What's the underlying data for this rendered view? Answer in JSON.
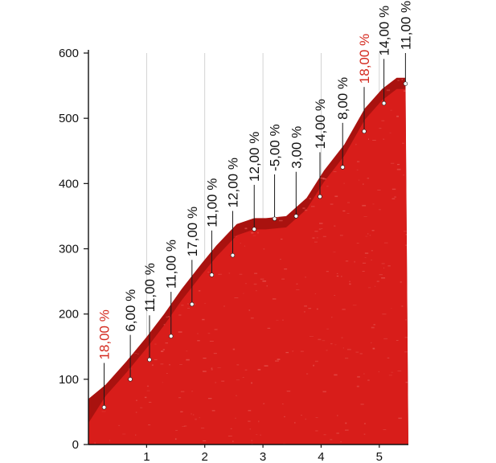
{
  "chart_data": {
    "type": "area",
    "xlim": [
      0,
      5.5
    ],
    "ylim": [
      0,
      600
    ],
    "x_ticks": [
      1,
      2,
      3,
      4,
      5
    ],
    "y_ticks": [
      0,
      100,
      200,
      300,
      400,
      500,
      600
    ],
    "grid": true,
    "profile": {
      "x": [
        0,
        0.3,
        0.65,
        1.0,
        1.3,
        1.6,
        1.95,
        2.2,
        2.55,
        2.85,
        3.05,
        3.4,
        3.75,
        4.05,
        4.4,
        4.75,
        5.05,
        5.3,
        5.45
      ],
      "y": [
        70,
        92,
        127,
        165,
        200,
        238,
        278,
        305,
        338,
        347,
        347,
        350,
        378,
        420,
        460,
        515,
        545,
        562,
        562
      ]
    },
    "gradients": [
      {
        "x": 0.27,
        "y": 57,
        "label": "18,00 %",
        "color": "#d42a1f"
      },
      {
        "x": 0.72,
        "y": 100,
        "label": "6,00 %",
        "color": "#111111"
      },
      {
        "x": 1.05,
        "y": 130,
        "label": "11,00 %",
        "color": "#111111"
      },
      {
        "x": 1.42,
        "y": 166,
        "label": "11,00 %",
        "color": "#111111"
      },
      {
        "x": 1.78,
        "y": 215,
        "label": "17,00 %",
        "color": "#111111"
      },
      {
        "x": 2.12,
        "y": 260,
        "label": "11,00 %",
        "color": "#111111"
      },
      {
        "x": 2.48,
        "y": 290,
        "label": "12,00 %",
        "color": "#111111"
      },
      {
        "x": 2.85,
        "y": 330,
        "label": "12,00 %",
        "color": "#111111"
      },
      {
        "x": 3.2,
        "y": 346,
        "label": "-5,00 %",
        "color": "#111111"
      },
      {
        "x": 3.57,
        "y": 350,
        "label": "3,00 %",
        "color": "#111111"
      },
      {
        "x": 3.98,
        "y": 380,
        "label": "14,00 %",
        "color": "#111111"
      },
      {
        "x": 4.37,
        "y": 425,
        "label": "8,00 %",
        "color": "#111111"
      },
      {
        "x": 4.74,
        "y": 480,
        "label": "18,00 %",
        "color": "#d42a1f"
      },
      {
        "x": 5.08,
        "y": 523,
        "label": "14,00 %",
        "color": "#111111"
      },
      {
        "x": 5.45,
        "y": 553,
        "label": "11,00 %",
        "color": "#111111"
      }
    ],
    "colors": {
      "fill_top": "#a9120f",
      "fill_main": "#d81d1a",
      "speckle": "#e65a55",
      "axis": "#111111",
      "grid": "#c8c8c8",
      "label_default": "#111111",
      "label_highlight": "#d42a1f"
    }
  }
}
